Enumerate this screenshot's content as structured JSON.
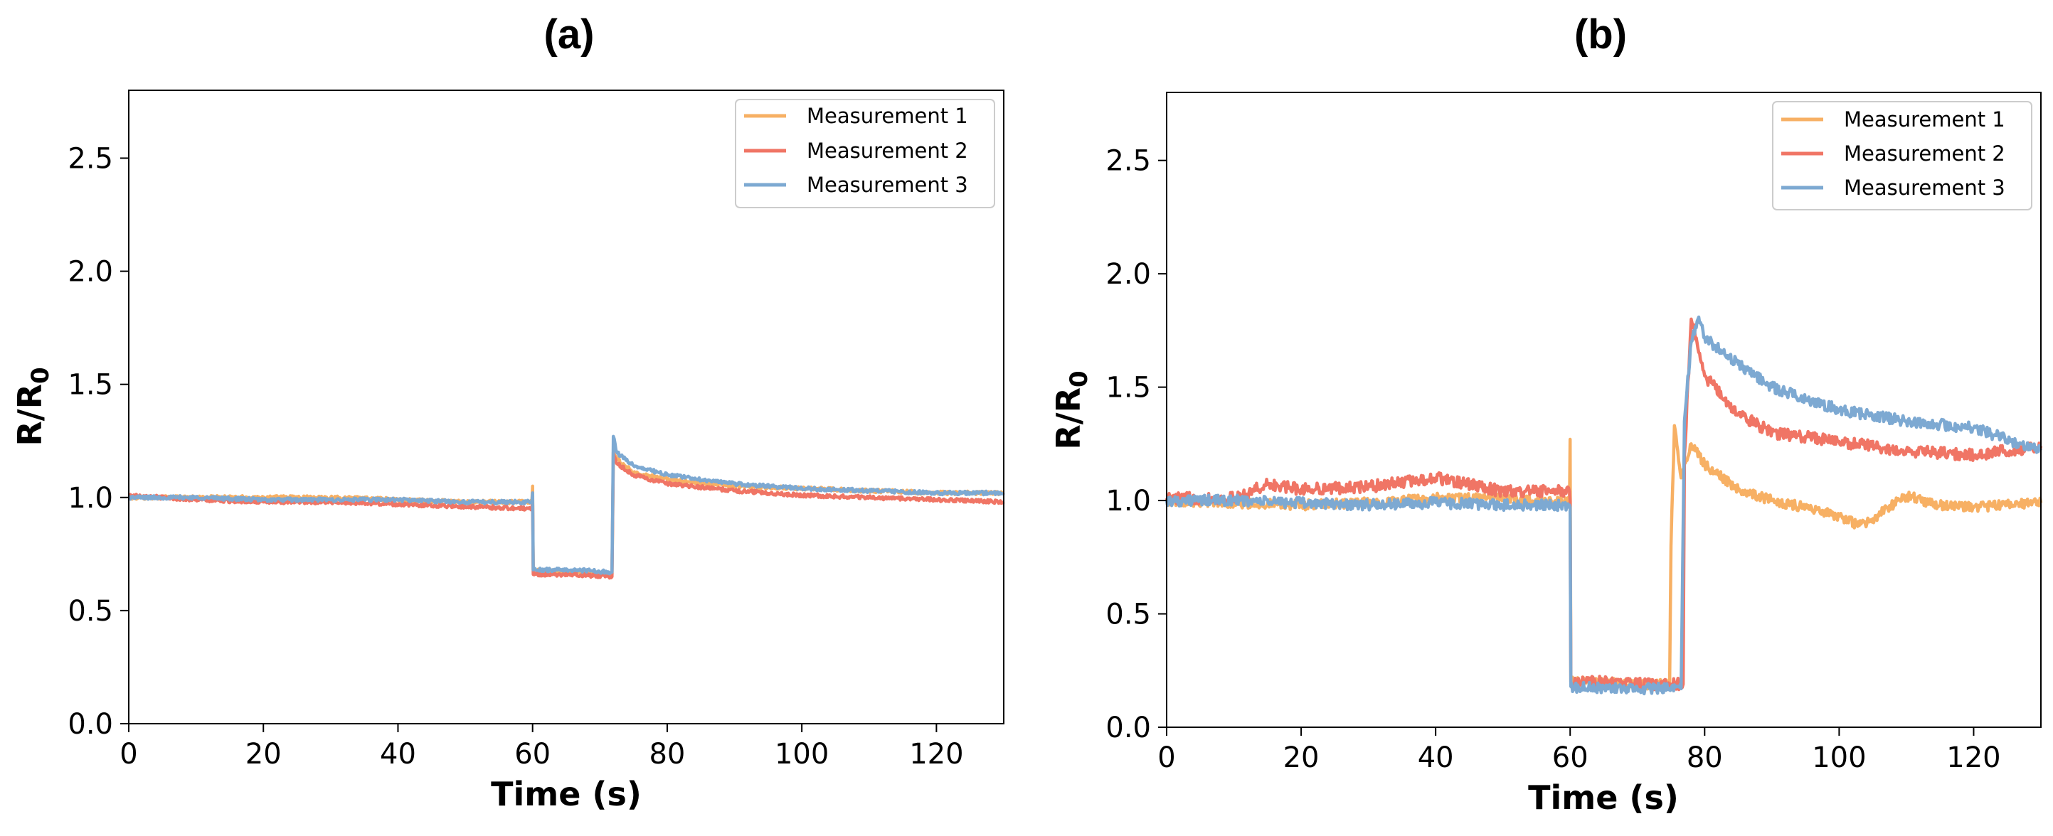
{
  "chart_data": [
    {
      "type": "line",
      "panel_label": "(a)",
      "xlabel": "Time (s)",
      "ylabel_main": "R/R",
      "ylabel_sub": "0",
      "xlim": [
        0,
        130
      ],
      "ylim": [
        0,
        2.8
      ],
      "xticks": [
        0,
        20,
        40,
        60,
        80,
        100,
        120
      ],
      "yticks": [
        0.0,
        0.5,
        1.0,
        1.5,
        2.0,
        2.5
      ],
      "ytick_labels": [
        "0.0",
        "0.5",
        "1.0",
        "1.5",
        "2.0",
        "2.5"
      ],
      "legend_position": "top-right",
      "series": [
        {
          "name": "Measurement 1",
          "color": "#F7B064",
          "noise": 0.008,
          "x": [
            0,
            10,
            20,
            30,
            40,
            50,
            59.9,
            60,
            60.1,
            66,
            71.8,
            72,
            72.5,
            75,
            80,
            90,
            100,
            110,
            120,
            130
          ],
          "y": [
            1.0,
            1.0,
            1.0,
            1.0,
            0.99,
            0.98,
            0.98,
            1.05,
            0.68,
            0.67,
            0.66,
            1.2,
            1.17,
            1.11,
            1.08,
            1.05,
            1.04,
            1.03,
            1.02,
            1.02
          ]
        },
        {
          "name": "Measurement 2",
          "color": "#F07565",
          "noise": 0.008,
          "x": [
            0,
            10,
            20,
            30,
            40,
            50,
            59.9,
            60,
            60.1,
            66,
            71.8,
            72,
            72.5,
            75,
            80,
            90,
            100,
            110,
            120,
            130
          ],
          "y": [
            1.01,
            0.99,
            0.98,
            0.98,
            0.97,
            0.96,
            0.95,
            1.0,
            0.66,
            0.66,
            0.65,
            1.2,
            1.15,
            1.1,
            1.06,
            1.03,
            1.01,
            1.0,
            0.99,
            0.98
          ]
        },
        {
          "name": "Measurement 3",
          "color": "#7DA9D2",
          "noise": 0.008,
          "x": [
            0,
            10,
            20,
            30,
            40,
            50,
            59.9,
            60,
            60.1,
            66,
            71.8,
            72,
            72.5,
            75,
            80,
            90,
            100,
            110,
            120,
            130
          ],
          "y": [
            1.0,
            1.0,
            0.99,
            0.99,
            0.99,
            0.98,
            0.98,
            1.02,
            0.68,
            0.68,
            0.67,
            1.27,
            1.2,
            1.14,
            1.1,
            1.06,
            1.04,
            1.03,
            1.02,
            1.02
          ]
        }
      ]
    },
    {
      "type": "line",
      "panel_label": "(b)",
      "xlabel": "Time (s)",
      "ylabel_main": "R/R",
      "ylabel_sub": "0",
      "xlim": [
        0,
        130
      ],
      "ylim": [
        0,
        2.8
      ],
      "xticks": [
        0,
        20,
        40,
        60,
        80,
        100,
        120
      ],
      "yticks": [
        0.0,
        0.5,
        1.0,
        1.5,
        2.0,
        2.5
      ],
      "ytick_labels": [
        "0.0",
        "0.5",
        "1.0",
        "1.5",
        "2.0",
        "2.5"
      ],
      "legend_position": "top-right",
      "series": [
        {
          "name": "Measurement 1",
          "color": "#F7B064",
          "noise": 0.022,
          "x": [
            0,
            10,
            20,
            30,
            40,
            50,
            59.9,
            60,
            60.1,
            65,
            70,
            74.8,
            75,
            75.5,
            76.5,
            78,
            80,
            85,
            90,
            95,
            100,
            103,
            105,
            110,
            115,
            120,
            125,
            130
          ],
          "y": [
            1.0,
            0.99,
            0.98,
            0.99,
            1.01,
            1.01,
            0.99,
            1.27,
            0.2,
            0.2,
            0.19,
            0.19,
            0.8,
            1.33,
            1.1,
            1.25,
            1.16,
            1.05,
            1.0,
            0.97,
            0.93,
            0.89,
            0.92,
            1.02,
            0.98,
            0.97,
            0.98,
            0.99
          ]
        },
        {
          "name": "Measurement 2",
          "color": "#F07565",
          "noise": 0.026,
          "x": [
            0,
            10,
            15,
            20,
            30,
            40,
            50,
            59.9,
            60,
            60.1,
            65,
            70,
            75,
            76.8,
            77,
            78,
            80,
            85,
            90,
            100,
            110,
            120,
            130
          ],
          "y": [
            1.01,
            1.01,
            1.07,
            1.05,
            1.06,
            1.1,
            1.04,
            1.04,
            1.0,
            0.2,
            0.2,
            0.19,
            0.19,
            0.19,
            1.2,
            1.8,
            1.55,
            1.38,
            1.3,
            1.26,
            1.22,
            1.2,
            1.24
          ]
        },
        {
          "name": "Measurement 3",
          "color": "#7DA9D2",
          "noise": 0.024,
          "x": [
            0,
            10,
            20,
            30,
            40,
            50,
            59.9,
            60,
            60.1,
            65,
            70,
            75,
            76.5,
            77,
            78,
            79,
            80,
            85,
            90,
            100,
            110,
            120,
            130
          ],
          "y": [
            1.0,
            1.0,
            0.99,
            0.98,
            0.99,
            0.98,
            0.98,
            0.97,
            0.18,
            0.17,
            0.17,
            0.17,
            0.17,
            1.35,
            1.7,
            1.8,
            1.72,
            1.6,
            1.5,
            1.4,
            1.35,
            1.32,
            1.22
          ]
        }
      ]
    }
  ]
}
